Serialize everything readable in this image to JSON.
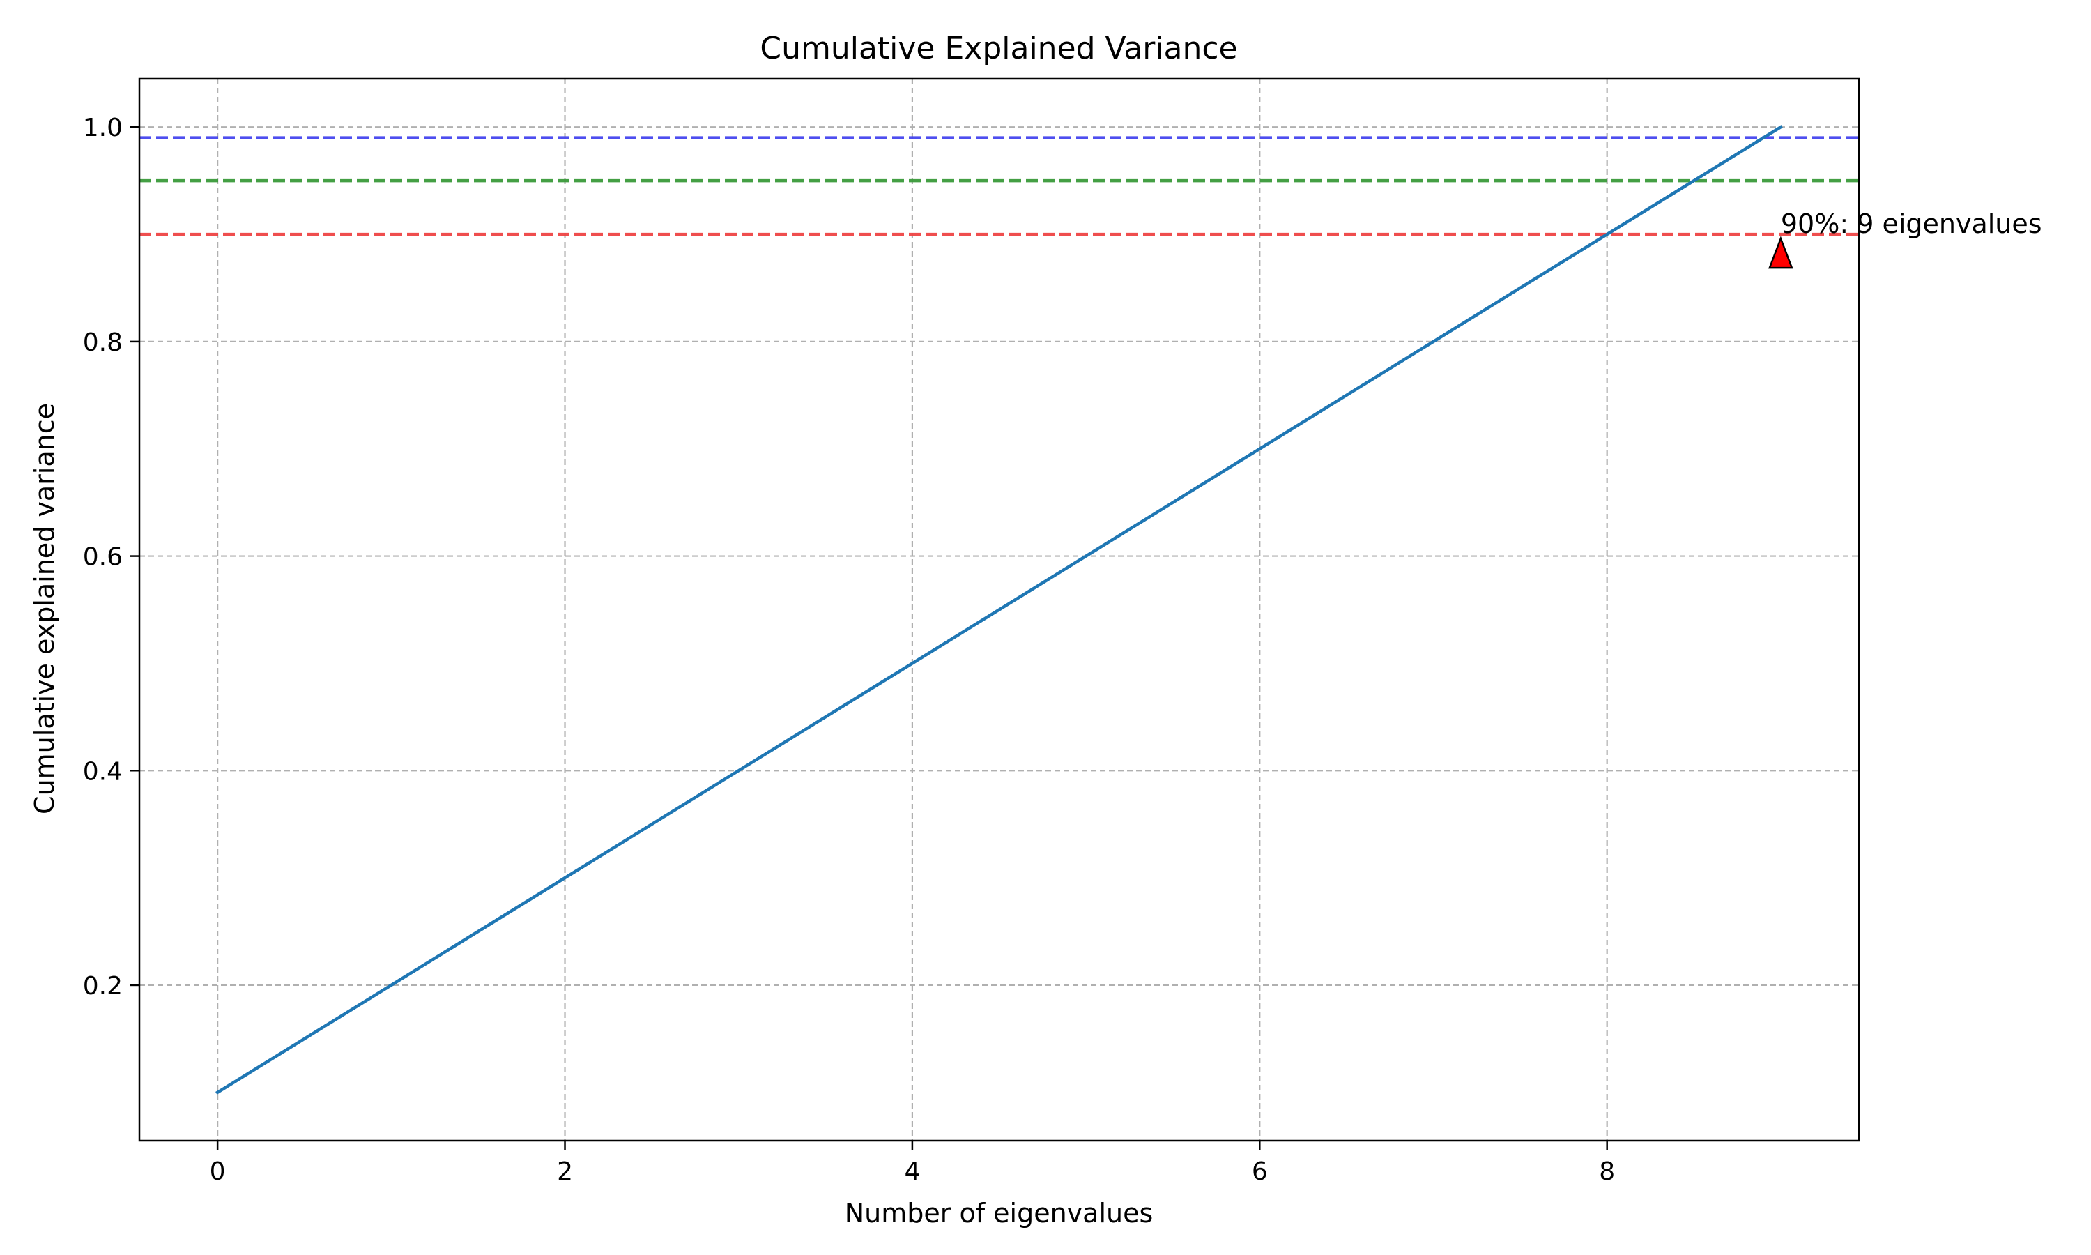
{
  "chart_data": {
    "type": "line",
    "title": "Cumulative Explained Variance",
    "xlabel": "Number of eigenvalues",
    "ylabel": "Cumulative explained variance",
    "xlim": [
      -0.45,
      9.45
    ],
    "ylim": [
      0.055,
      1.045
    ],
    "x_ticks": [
      0,
      2,
      4,
      6,
      8
    ],
    "y_ticks": [
      0.2,
      0.4,
      0.6,
      0.8,
      1.0
    ],
    "x_tick_labels": [
      "0",
      "2",
      "4",
      "6",
      "8"
    ],
    "y_tick_labels": [
      "0.2",
      "0.4",
      "0.6",
      "0.8",
      "1.0"
    ],
    "grid": true,
    "series": [
      {
        "x": [
          0,
          1,
          2,
          3,
          4,
          5,
          6,
          7,
          8,
          9
        ],
        "y": [
          0.1,
          0.2,
          0.3,
          0.4,
          0.5,
          0.6,
          0.7,
          0.8,
          0.9,
          1.0
        ],
        "color": "#1f77b4"
      }
    ],
    "threshold_lines": [
      {
        "y": 0.99,
        "color": "#4444ee",
        "style": "dashed"
      },
      {
        "y": 0.95,
        "color": "#3a9a3a",
        "style": "dashed"
      },
      {
        "y": 0.9,
        "color": "#ee4444",
        "style": "dashed"
      }
    ],
    "annotations": [
      {
        "text": "90%: 9 eigenvalues",
        "x": 9,
        "y": 0.9,
        "marker": "triangle-up",
        "marker_color": "#ff0000"
      }
    ]
  }
}
